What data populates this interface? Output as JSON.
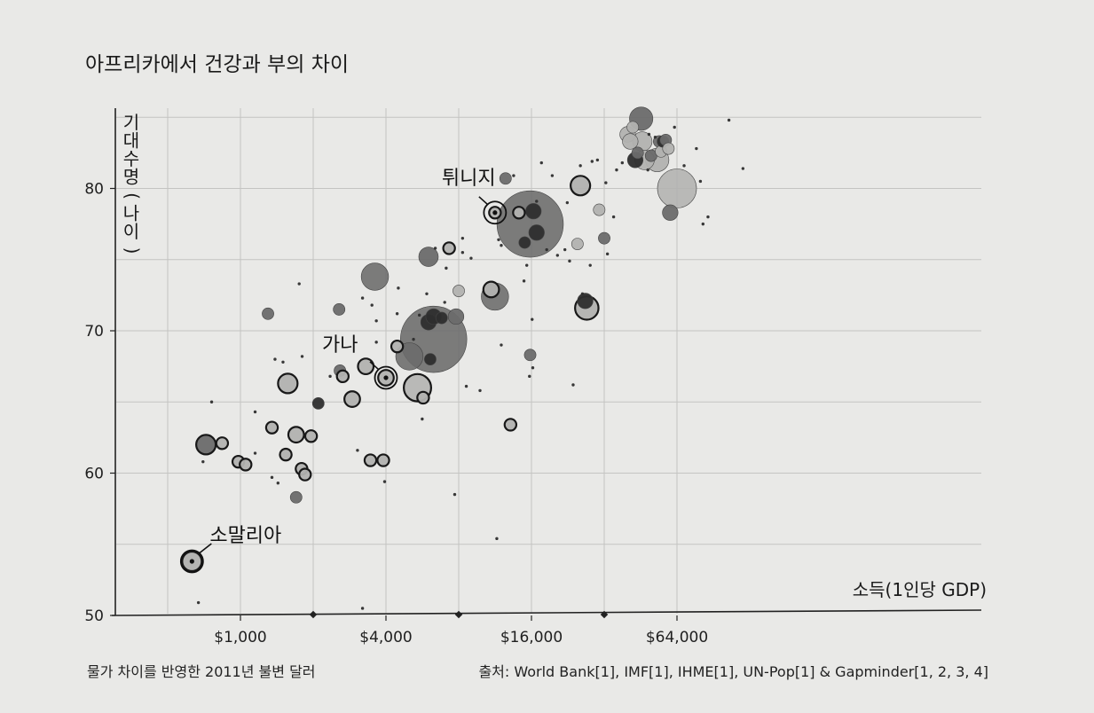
{
  "chart_data": {
    "type": "scatter",
    "title": "아프리카에서 건강과 부의 차이",
    "xlabel": "소득(1인당 GDP)",
    "ylabel_chars": [
      "기",
      "대",
      "수",
      "명",
      "(",
      "나",
      "이",
      ")"
    ],
    "x_scale": "log2",
    "xlim": [
      500,
      125000
    ],
    "ylim": [
      50,
      86
    ],
    "x_ticks": [
      {
        "value": 1000,
        "label": "$1,000"
      },
      {
        "value": 4000,
        "label": "$4,000"
      },
      {
        "value": 16000,
        "label": "$16,000"
      },
      {
        "value": 64000,
        "label": "$64,000"
      }
    ],
    "y_ticks": [
      {
        "value": 50,
        "label": "50"
      },
      {
        "value": 60,
        "label": "60"
      },
      {
        "value": 70,
        "label": "70"
      },
      {
        "value": 80,
        "label": "80"
      }
    ],
    "note": "물가 차이를 반영한 2011년 불변 달러",
    "source": "출처: World Bank[1], IMF[1], IHME[1], UN-Pop[1] & Gapminder[1, 2, 3, 4]",
    "grid": true,
    "highlighted": [
      {
        "name": "소말리아",
        "x": 630,
        "y": 53.8
      },
      {
        "name": "가나",
        "x": 4000,
        "y": 66.7
      },
      {
        "name": "튀니지",
        "x": 11300,
        "y": 78.3
      }
    ],
    "points": [
      {
        "x": 630,
        "y": 53.8,
        "size": 4,
        "tone": "light",
        "ring": true
      },
      {
        "x": 670,
        "y": 50.9,
        "size": 1,
        "tone": "dark"
      },
      {
        "x": 720,
        "y": 62.0,
        "size": 4,
        "tone": "mid",
        "ring": true
      },
      {
        "x": 700,
        "y": 60.8,
        "size": 1,
        "tone": "dark"
      },
      {
        "x": 760,
        "y": 65.0,
        "size": 1,
        "tone": "dark"
      },
      {
        "x": 840,
        "y": 62.1,
        "size": 2,
        "tone": "light",
        "ring": true
      },
      {
        "x": 980,
        "y": 60.8,
        "size": 2,
        "tone": "light",
        "ring": true
      },
      {
        "x": 1050,
        "y": 60.6,
        "size": 2,
        "tone": "light",
        "ring": true
      },
      {
        "x": 1150,
        "y": 61.4,
        "size": 1,
        "tone": "dark"
      },
      {
        "x": 1150,
        "y": 64.3,
        "size": 1,
        "tone": "dark"
      },
      {
        "x": 1350,
        "y": 63.2,
        "size": 2,
        "tone": "light",
        "ring": true
      },
      {
        "x": 1350,
        "y": 59.7,
        "size": 1,
        "tone": "dark"
      },
      {
        "x": 1300,
        "y": 71.2,
        "size": 2,
        "tone": "mid"
      },
      {
        "x": 1430,
        "y": 59.3,
        "size": 1,
        "tone": "dark"
      },
      {
        "x": 1570,
        "y": 66.3,
        "size": 4,
        "tone": "light",
        "ring": true
      },
      {
        "x": 1540,
        "y": 61.3,
        "size": 2,
        "tone": "light",
        "ring": true
      },
      {
        "x": 1700,
        "y": 62.7,
        "size": 3,
        "tone": "light",
        "ring": true
      },
      {
        "x": 1700,
        "y": 58.3,
        "size": 2,
        "tone": "mid"
      },
      {
        "x": 1790,
        "y": 60.3,
        "size": 2,
        "tone": "light",
        "ring": true
      },
      {
        "x": 1850,
        "y": 59.9,
        "size": 2,
        "tone": "light",
        "ring": true
      },
      {
        "x": 1960,
        "y": 62.6,
        "size": 2,
        "tone": "light",
        "ring": true
      },
      {
        "x": 2100,
        "y": 64.9,
        "size": 2,
        "tone": "dark"
      },
      {
        "x": 1390,
        "y": 68.0,
        "size": 1,
        "tone": "dark"
      },
      {
        "x": 1500,
        "y": 67.8,
        "size": 1,
        "tone": "dark"
      },
      {
        "x": 1750,
        "y": 73.3,
        "size": 1,
        "tone": "dark"
      },
      {
        "x": 1800,
        "y": 68.2,
        "size": 1,
        "tone": "dark"
      },
      {
        "x": 2350,
        "y": 66.8,
        "size": 1,
        "tone": "dark"
      },
      {
        "x": 2580,
        "y": 67.2,
        "size": 2,
        "tone": "mid"
      },
      {
        "x": 2650,
        "y": 66.8,
        "size": 2,
        "tone": "light",
        "ring": true
      },
      {
        "x": 2560,
        "y": 71.5,
        "size": 2,
        "tone": "mid"
      },
      {
        "x": 2900,
        "y": 65.2,
        "size": 3,
        "tone": "light",
        "ring": true
      },
      {
        "x": 3050,
        "y": 61.6,
        "size": 1,
        "tone": "dark"
      },
      {
        "x": 3200,
        "y": 50.5,
        "size": 1,
        "tone": "dark"
      },
      {
        "x": 3200,
        "y": 72.3,
        "size": 1,
        "tone": "dark"
      },
      {
        "x": 3300,
        "y": 67.5,
        "size": 3,
        "tone": "light",
        "ring": true
      },
      {
        "x": 3450,
        "y": 60.9,
        "size": 2,
        "tone": "light",
        "ring": true
      },
      {
        "x": 3500,
        "y": 71.8,
        "size": 1,
        "tone": "dark"
      },
      {
        "x": 3600,
        "y": 73.8,
        "size": 6,
        "tone": "mid"
      },
      {
        "x": 3650,
        "y": 70.7,
        "size": 1,
        "tone": "dark"
      },
      {
        "x": 3650,
        "y": 69.2,
        "size": 1,
        "tone": "dark"
      },
      {
        "x": 3900,
        "y": 60.9,
        "size": 2,
        "tone": "light",
        "ring": true
      },
      {
        "x": 4000,
        "y": 66.7,
        "size": 3,
        "tone": "light",
        "ring": true
      },
      {
        "x": 3950,
        "y": 59.4,
        "size": 1,
        "tone": "dark"
      },
      {
        "x": 4450,
        "y": 68.9,
        "size": 2,
        "tone": "light",
        "ring": true
      },
      {
        "x": 4500,
        "y": 73.0,
        "size": 1,
        "tone": "dark"
      },
      {
        "x": 4450,
        "y": 71.2,
        "size": 1,
        "tone": "dark"
      },
      {
        "x": 5000,
        "y": 68.2,
        "size": 6,
        "tone": "mid"
      },
      {
        "x": 5200,
        "y": 69.4,
        "size": 1,
        "tone": "dark"
      },
      {
        "x": 5500,
        "y": 71.1,
        "size": 1,
        "tone": "dark"
      },
      {
        "x": 5400,
        "y": 66.0,
        "size": 6,
        "tone": "light",
        "ring": true
      },
      {
        "x": 5700,
        "y": 65.3,
        "size": 2,
        "tone": "light",
        "ring": true
      },
      {
        "x": 5650,
        "y": 63.8,
        "size": 1,
        "tone": "dark"
      },
      {
        "x": 5900,
        "y": 72.6,
        "size": 1,
        "tone": "dark"
      },
      {
        "x": 6300,
        "y": 69.4,
        "size": 16,
        "tone": "mid"
      },
      {
        "x": 6000,
        "y": 70.6,
        "size": 3,
        "tone": "dark"
      },
      {
        "x": 6300,
        "y": 71.0,
        "size": 3,
        "tone": "dark"
      },
      {
        "x": 6800,
        "y": 70.9,
        "size": 2,
        "tone": "dark"
      },
      {
        "x": 6100,
        "y": 68.0,
        "size": 2,
        "tone": "dark"
      },
      {
        "x": 6000,
        "y": 75.2,
        "size": 4,
        "tone": "mid"
      },
      {
        "x": 6400,
        "y": 75.8,
        "size": 1,
        "tone": "dark"
      },
      {
        "x": 7300,
        "y": 75.8,
        "size": 2,
        "tone": "light",
        "ring": true
      },
      {
        "x": 7100,
        "y": 74.4,
        "size": 1,
        "tone": "dark"
      },
      {
        "x": 7000,
        "y": 72.0,
        "size": 1,
        "tone": "dark"
      },
      {
        "x": 7800,
        "y": 71.0,
        "size": 3,
        "tone": "mid"
      },
      {
        "x": 8000,
        "y": 72.8,
        "size": 2,
        "tone": "light"
      },
      {
        "x": 8300,
        "y": 75.5,
        "size": 1,
        "tone": "dark"
      },
      {
        "x": 8300,
        "y": 76.5,
        "size": 1,
        "tone": "dark"
      },
      {
        "x": 9000,
        "y": 75.1,
        "size": 1,
        "tone": "dark"
      },
      {
        "x": 8600,
        "y": 66.1,
        "size": 1,
        "tone": "dark"
      },
      {
        "x": 7700,
        "y": 58.5,
        "size": 1,
        "tone": "dark"
      },
      {
        "x": 9800,
        "y": 65.8,
        "size": 1,
        "tone": "dark"
      },
      {
        "x": 10900,
        "y": 72.9,
        "size": 3,
        "tone": "light",
        "ring": true
      },
      {
        "x": 11300,
        "y": 78.3,
        "size": 2,
        "tone": "light",
        "ring": true
      },
      {
        "x": 11300,
        "y": 72.4,
        "size": 6,
        "tone": "mid"
      },
      {
        "x": 11700,
        "y": 76.4,
        "size": 1,
        "tone": "dark"
      },
      {
        "x": 12000,
        "y": 69.0,
        "size": 1,
        "tone": "dark"
      },
      {
        "x": 12000,
        "y": 76.0,
        "size": 1,
        "tone": "dark"
      },
      {
        "x": 11500,
        "y": 55.4,
        "size": 1,
        "tone": "dark"
      },
      {
        "x": 12500,
        "y": 80.7,
        "size": 2,
        "tone": "mid"
      },
      {
        "x": 13100,
        "y": 63.4,
        "size": 2,
        "tone": "light",
        "ring": true
      },
      {
        "x": 13500,
        "y": 80.9,
        "size": 1,
        "tone": "dark"
      },
      {
        "x": 14200,
        "y": 78.3,
        "size": 2,
        "tone": "light",
        "ring": true
      },
      {
        "x": 15800,
        "y": 77.5,
        "size": 16,
        "tone": "mid"
      },
      {
        "x": 16300,
        "y": 78.4,
        "size": 3,
        "tone": "dark"
      },
      {
        "x": 16800,
        "y": 76.9,
        "size": 3,
        "tone": "dark"
      },
      {
        "x": 15000,
        "y": 76.2,
        "size": 2,
        "tone": "dark"
      },
      {
        "x": 16800,
        "y": 79.1,
        "size": 1,
        "tone": "dark"
      },
      {
        "x": 14900,
        "y": 73.5,
        "size": 1,
        "tone": "dark"
      },
      {
        "x": 15300,
        "y": 74.6,
        "size": 1,
        "tone": "dark"
      },
      {
        "x": 15800,
        "y": 68.3,
        "size": 2,
        "tone": "mid"
      },
      {
        "x": 16200,
        "y": 67.4,
        "size": 1,
        "tone": "dark"
      },
      {
        "x": 15700,
        "y": 66.8,
        "size": 1,
        "tone": "dark"
      },
      {
        "x": 16100,
        "y": 70.8,
        "size": 1,
        "tone": "dark"
      },
      {
        "x": 17600,
        "y": 81.8,
        "size": 1,
        "tone": "dark"
      },
      {
        "x": 18500,
        "y": 75.7,
        "size": 1,
        "tone": "dark"
      },
      {
        "x": 19500,
        "y": 80.9,
        "size": 1,
        "tone": "dark"
      },
      {
        "x": 20500,
        "y": 75.3,
        "size": 1,
        "tone": "dark"
      },
      {
        "x": 22500,
        "y": 79.0,
        "size": 1,
        "tone": "dark"
      },
      {
        "x": 22000,
        "y": 75.7,
        "size": 1,
        "tone": "dark"
      },
      {
        "x": 23000,
        "y": 74.9,
        "size": 1,
        "tone": "dark"
      },
      {
        "x": 23800,
        "y": 66.2,
        "size": 1,
        "tone": "dark"
      },
      {
        "x": 24800,
        "y": 76.1,
        "size": 2,
        "tone": "light"
      },
      {
        "x": 25500,
        "y": 80.2,
        "size": 4,
        "tone": "light",
        "ring": true
      },
      {
        "x": 25500,
        "y": 81.6,
        "size": 1,
        "tone": "dark"
      },
      {
        "x": 26000,
        "y": 72.6,
        "size": 1,
        "tone": "dark"
      },
      {
        "x": 26700,
        "y": 72.1,
        "size": 3,
        "tone": "dark"
      },
      {
        "x": 27100,
        "y": 71.6,
        "size": 5,
        "tone": "light",
        "ring": true
      },
      {
        "x": 28000,
        "y": 74.6,
        "size": 1,
        "tone": "dark"
      },
      {
        "x": 28500,
        "y": 81.9,
        "size": 1,
        "tone": "dark"
      },
      {
        "x": 30000,
        "y": 82.0,
        "size": 1,
        "tone": "dark"
      },
      {
        "x": 30500,
        "y": 78.5,
        "size": 2,
        "tone": "light"
      },
      {
        "x": 32000,
        "y": 76.5,
        "size": 2,
        "tone": "mid"
      },
      {
        "x": 32500,
        "y": 80.4,
        "size": 1,
        "tone": "dark"
      },
      {
        "x": 33000,
        "y": 75.4,
        "size": 1,
        "tone": "dark"
      },
      {
        "x": 35000,
        "y": 78.0,
        "size": 1,
        "tone": "dark"
      },
      {
        "x": 36000,
        "y": 81.3,
        "size": 1,
        "tone": "dark"
      },
      {
        "x": 38000,
        "y": 81.8,
        "size": 1,
        "tone": "dark"
      },
      {
        "x": 40000,
        "y": 83.8,
        "size": 3,
        "tone": "light"
      },
      {
        "x": 41000,
        "y": 83.3,
        "size": 3,
        "tone": "light"
      },
      {
        "x": 42000,
        "y": 84.3,
        "size": 2,
        "tone": "light"
      },
      {
        "x": 43000,
        "y": 82.0,
        "size": 3,
        "tone": "dark"
      },
      {
        "x": 44000,
        "y": 82.5,
        "size": 2,
        "tone": "mid"
      },
      {
        "x": 45500,
        "y": 84.9,
        "size": 5,
        "tone": "mid"
      },
      {
        "x": 46000,
        "y": 83.3,
        "size": 4,
        "tone": "light"
      },
      {
        "x": 47000,
        "y": 82.0,
        "size": 4,
        "tone": "light"
      },
      {
        "x": 48500,
        "y": 81.3,
        "size": 1,
        "tone": "dark"
      },
      {
        "x": 49000,
        "y": 83.8,
        "size": 1,
        "tone": "dark"
      },
      {
        "x": 50000,
        "y": 82.3,
        "size": 2,
        "tone": "mid"
      },
      {
        "x": 52000,
        "y": 83.6,
        "size": 1,
        "tone": "dark"
      },
      {
        "x": 53000,
        "y": 82.0,
        "size": 5,
        "tone": "light"
      },
      {
        "x": 54000,
        "y": 83.3,
        "size": 2,
        "tone": "mid"
      },
      {
        "x": 55000,
        "y": 82.6,
        "size": 2,
        "tone": "light"
      },
      {
        "x": 56000,
        "y": 83.3,
        "size": 2,
        "tone": "dark"
      },
      {
        "x": 57500,
        "y": 83.4,
        "size": 2,
        "tone": "mid"
      },
      {
        "x": 59000,
        "y": 82.8,
        "size": 2,
        "tone": "light"
      },
      {
        "x": 60000,
        "y": 78.3,
        "size": 3,
        "tone": "mid"
      },
      {
        "x": 62500,
        "y": 84.3,
        "size": 1,
        "tone": "dark"
      },
      {
        "x": 64000,
        "y": 80.0,
        "size": 9,
        "tone": "light"
      },
      {
        "x": 68500,
        "y": 81.6,
        "size": 1,
        "tone": "dark"
      },
      {
        "x": 77000,
        "y": 82.8,
        "size": 1,
        "tone": "dark"
      },
      {
        "x": 80000,
        "y": 80.5,
        "size": 1,
        "tone": "dark"
      },
      {
        "x": 82000,
        "y": 77.5,
        "size": 1,
        "tone": "dark"
      },
      {
        "x": 86000,
        "y": 78.0,
        "size": 1,
        "tone": "dark"
      },
      {
        "x": 105000,
        "y": 84.8,
        "size": 1,
        "tone": "dark"
      },
      {
        "x": 120000,
        "y": 81.4,
        "size": 1,
        "tone": "dark"
      }
    ],
    "colors": {
      "background": "#e9e9e7",
      "dark": "#2e2e2e",
      "mid": "#6b6b6b",
      "light": "#b2b2b0",
      "ring": "#181818"
    }
  }
}
